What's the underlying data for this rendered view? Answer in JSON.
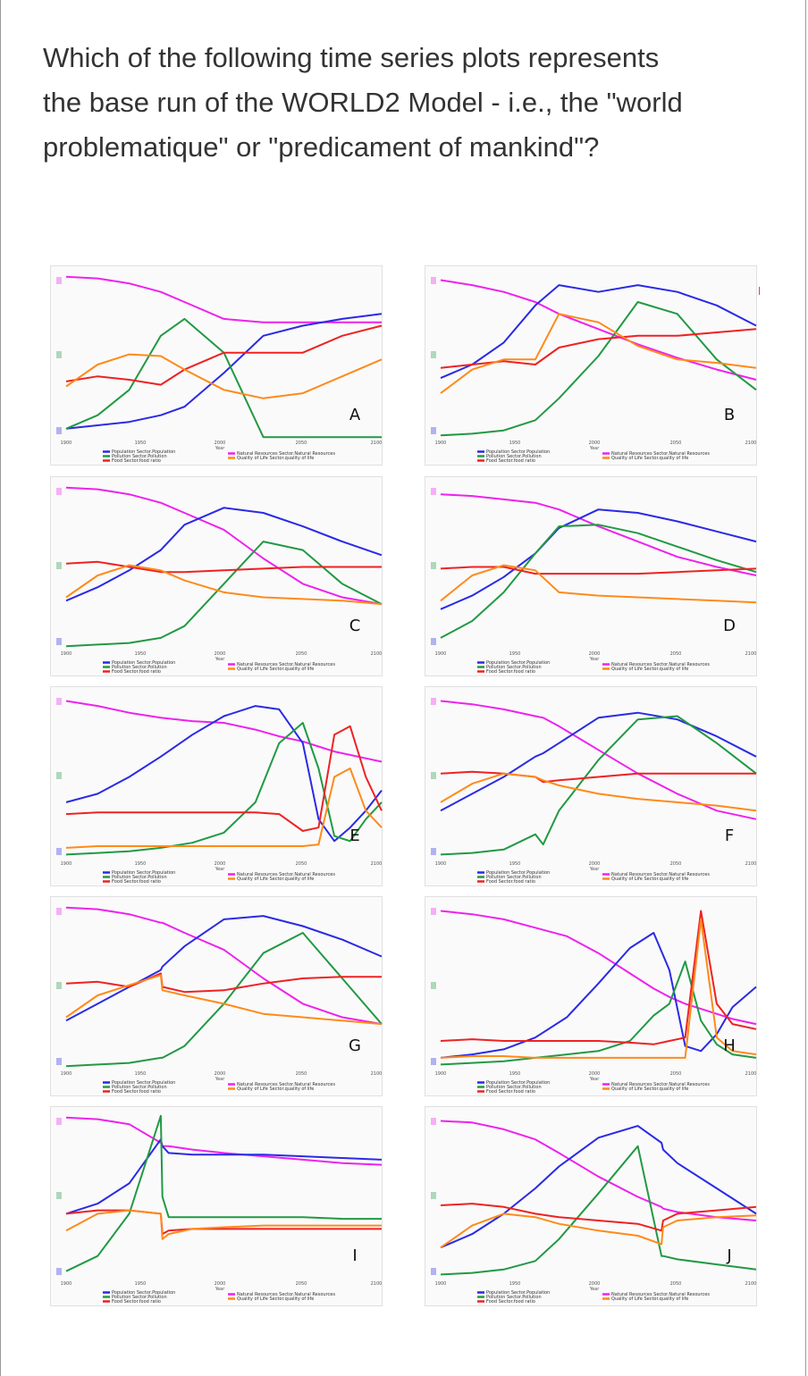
{
  "question": {
    "lines": [
      "Which of the following time series plots represents",
      "the base run of the WORLD2 Model - i.e., the \"world",
      "problematique\" or \"predicament of mankind\"?"
    ]
  },
  "colors": {
    "Natural Resources": "#ee22ee",
    "Population": "#2a2ae6",
    "Pollution": "#229944",
    "Food Ratio": "#ee2222",
    "Quality of Life": "#ff8a1a"
  },
  "legend": {
    "left": [
      "Population Sector.Population",
      "Pollution Sector.Pollution",
      "Food Sector.food ratio"
    ],
    "right": [
      "Natural Resources Sector.Natural Resources",
      "Quality of Life Sector.quality of life"
    ],
    "left_colors": [
      "#2a2ae6",
      "#229944",
      "#ee2222"
    ],
    "right_colors": [
      "#ee22ee",
      "#ff8a1a"
    ]
  },
  "chart_data": [
    {
      "type": "line",
      "label": "A",
      "x": [
        1900,
        1920,
        1940,
        1960,
        1975,
        2000,
        2025,
        2050,
        2075,
        2100
      ],
      "ylim": [
        0,
        1
      ],
      "xlabel": "Year",
      "x_ticks": [
        "1900",
        "1950",
        "2000",
        "2050",
        "2100"
      ],
      "series": [
        {
          "key": "Natural Resources",
          "values": [
            0.97,
            0.96,
            0.93,
            0.88,
            0.82,
            0.72,
            0.7,
            0.7,
            0.7,
            0.7
          ]
        },
        {
          "key": "Population",
          "values": [
            0.07,
            0.09,
            0.11,
            0.15,
            0.2,
            0.4,
            0.62,
            0.68,
            0.72,
            0.75
          ]
        },
        {
          "key": "Pollution",
          "values": [
            0.07,
            0.15,
            0.3,
            0.62,
            0.72,
            0.52,
            0.02,
            0.02,
            0.02,
            0.02
          ]
        },
        {
          "key": "Food Ratio",
          "values": [
            0.35,
            0.38,
            0.36,
            0.33,
            0.42,
            0.52,
            0.52,
            0.52,
            0.62,
            0.68
          ]
        },
        {
          "key": "Quality of Life",
          "values": [
            0.32,
            0.45,
            0.51,
            0.5,
            0.42,
            0.3,
            0.25,
            0.28,
            0.38,
            0.48
          ]
        }
      ]
    },
    {
      "type": "line",
      "label": "B",
      "x": [
        1900,
        1920,
        1940,
        1960,
        1975,
        2000,
        2025,
        2050,
        2075,
        2100
      ],
      "ylim": [
        0,
        1
      ],
      "xlabel": "Year",
      "x_ticks": [
        "1900",
        "1950",
        "2000",
        "2050",
        "2100"
      ],
      "series": [
        {
          "key": "Natural Resources",
          "values": [
            0.95,
            0.92,
            0.88,
            0.82,
            0.75,
            0.66,
            0.57,
            0.49,
            0.42,
            0.36
          ]
        },
        {
          "key": "Population",
          "values": [
            0.37,
            0.45,
            0.58,
            0.8,
            0.92,
            0.88,
            0.92,
            0.88,
            0.8,
            0.68
          ]
        },
        {
          "key": "Pollution",
          "values": [
            0.03,
            0.04,
            0.06,
            0.12,
            0.25,
            0.5,
            0.82,
            0.75,
            0.48,
            0.3
          ]
        },
        {
          "key": "Food Ratio",
          "values": [
            0.43,
            0.45,
            0.47,
            0.45,
            0.55,
            0.6,
            0.62,
            0.62,
            0.64,
            0.66
          ]
        },
        {
          "key": "Quality of Life",
          "values": [
            0.28,
            0.42,
            0.48,
            0.48,
            0.75,
            0.7,
            0.56,
            0.48,
            0.46,
            0.43
          ]
        }
      ]
    },
    {
      "type": "line",
      "label": "C",
      "x": [
        1900,
        1920,
        1940,
        1960,
        1975,
        2000,
        2025,
        2050,
        2075,
        2100
      ],
      "ylim": [
        0,
        1
      ],
      "xlabel": "Year",
      "x_ticks": [
        "1900",
        "1950",
        "2000",
        "2050",
        "2100"
      ],
      "series": [
        {
          "key": "Natural Resources",
          "values": [
            0.97,
            0.96,
            0.93,
            0.88,
            0.82,
            0.72,
            0.55,
            0.4,
            0.32,
            0.28
          ]
        },
        {
          "key": "Population",
          "values": [
            0.3,
            0.38,
            0.48,
            0.6,
            0.75,
            0.85,
            0.82,
            0.74,
            0.65,
            0.57
          ]
        },
        {
          "key": "Pollution",
          "values": [
            0.03,
            0.04,
            0.05,
            0.08,
            0.15,
            0.4,
            0.65,
            0.6,
            0.4,
            0.28
          ]
        },
        {
          "key": "Food Ratio",
          "values": [
            0.52,
            0.53,
            0.5,
            0.47,
            0.47,
            0.48,
            0.49,
            0.5,
            0.5,
            0.5
          ]
        },
        {
          "key": "Quality of Life",
          "values": [
            0.32,
            0.45,
            0.51,
            0.48,
            0.42,
            0.35,
            0.32,
            0.31,
            0.3,
            0.28
          ]
        }
      ]
    },
    {
      "type": "line",
      "label": "D",
      "x": [
        1900,
        1920,
        1940,
        1960,
        1975,
        2000,
        2025,
        2050,
        2075,
        2100
      ],
      "ylim": [
        0,
        1
      ],
      "xlabel": "Year",
      "x_ticks": [
        "1900",
        "1950",
        "2000",
        "2050",
        "2100"
      ],
      "series": [
        {
          "key": "Natural Resources",
          "values": [
            0.93,
            0.92,
            0.9,
            0.88,
            0.84,
            0.74,
            0.65,
            0.56,
            0.5,
            0.45
          ]
        },
        {
          "key": "Population",
          "values": [
            0.25,
            0.33,
            0.44,
            0.58,
            0.73,
            0.84,
            0.82,
            0.77,
            0.71,
            0.65
          ]
        },
        {
          "key": "Pollution",
          "values": [
            0.08,
            0.18,
            0.35,
            0.58,
            0.74,
            0.75,
            0.7,
            0.62,
            0.54,
            0.47
          ]
        },
        {
          "key": "Food Ratio",
          "values": [
            0.49,
            0.5,
            0.5,
            0.46,
            0.46,
            0.46,
            0.46,
            0.47,
            0.48,
            0.49
          ]
        },
        {
          "key": "Quality of Life",
          "values": [
            0.3,
            0.45,
            0.51,
            0.48,
            0.35,
            0.33,
            0.32,
            0.31,
            0.3,
            0.29
          ]
        }
      ]
    },
    {
      "type": "line",
      "label": "E",
      "x": [
        1900,
        1920,
        1940,
        1960,
        1980,
        2000,
        2020,
        2035,
        2050,
        2060,
        2070,
        2080,
        2090,
        2100
      ],
      "ylim": [
        0,
        1
      ],
      "xlabel": "Year",
      "x_ticks": [
        "1900",
        "1950",
        "2000",
        "2050",
        "2100"
      ],
      "series": [
        {
          "key": "Natural Resources",
          "values": [
            0.95,
            0.92,
            0.88,
            0.85,
            0.83,
            0.82,
            0.78,
            0.74,
            0.71,
            0.68,
            0.65,
            0.63,
            0.61,
            0.59
          ]
        },
        {
          "key": "Population",
          "values": [
            0.35,
            0.4,
            0.5,
            0.62,
            0.75,
            0.86,
            0.92,
            0.9,
            0.7,
            0.25,
            0.12,
            0.2,
            0.3,
            0.42
          ]
        },
        {
          "key": "Pollution",
          "values": [
            0.04,
            0.05,
            0.06,
            0.08,
            0.11,
            0.17,
            0.35,
            0.7,
            0.82,
            0.55,
            0.15,
            0.12,
            0.25,
            0.35
          ]
        },
        {
          "key": "Food Ratio",
          "values": [
            0.28,
            0.29,
            0.29,
            0.29,
            0.29,
            0.29,
            0.29,
            0.28,
            0.18,
            0.2,
            0.75,
            0.8,
            0.5,
            0.3
          ]
        },
        {
          "key": "Quality of Life",
          "values": [
            0.08,
            0.09,
            0.09,
            0.09,
            0.09,
            0.09,
            0.09,
            0.09,
            0.09,
            0.1,
            0.5,
            0.55,
            0.3,
            0.2
          ]
        }
      ]
    },
    {
      "type": "line",
      "label": "F",
      "x": [
        1900,
        1920,
        1940,
        1960,
        1965,
        1975,
        2000,
        2025,
        2050,
        2075,
        2100
      ],
      "ylim": [
        0,
        1
      ],
      "xlabel": "Year",
      "x_ticks": [
        "1900",
        "1950",
        "2000",
        "2050",
        "2100"
      ],
      "series": [
        {
          "key": "Natural Resources",
          "values": [
            0.95,
            0.93,
            0.9,
            0.86,
            0.85,
            0.8,
            0.66,
            0.52,
            0.4,
            0.3,
            0.25
          ]
        },
        {
          "key": "Population",
          "values": [
            0.3,
            0.4,
            0.5,
            0.62,
            0.64,
            0.7,
            0.85,
            0.88,
            0.84,
            0.74,
            0.62
          ]
        },
        {
          "key": "Pollution",
          "values": [
            0.04,
            0.05,
            0.07,
            0.16,
            0.1,
            0.3,
            0.6,
            0.84,
            0.86,
            0.7,
            0.52
          ]
        },
        {
          "key": "Food Ratio",
          "values": [
            0.52,
            0.53,
            0.52,
            0.5,
            0.47,
            0.48,
            0.5,
            0.52,
            0.52,
            0.52,
            0.52
          ]
        },
        {
          "key": "Quality of Life",
          "values": [
            0.35,
            0.46,
            0.52,
            0.5,
            0.48,
            0.45,
            0.4,
            0.37,
            0.35,
            0.33,
            0.3
          ]
        }
      ]
    },
    {
      "type": "line",
      "label": "G",
      "x": [
        1900,
        1920,
        1940,
        1960,
        1961,
        1975,
        2000,
        2025,
        2050,
        2075,
        2100
      ],
      "ylim": [
        0,
        1
      ],
      "xlabel": "Year",
      "x_ticks": [
        "1900",
        "1950",
        "2000",
        "2050",
        "2100"
      ],
      "series": [
        {
          "key": "Natural Resources",
          "values": [
            0.97,
            0.96,
            0.93,
            0.88,
            0.88,
            0.82,
            0.72,
            0.55,
            0.4,
            0.32,
            0.28
          ]
        },
        {
          "key": "Population",
          "values": [
            0.3,
            0.4,
            0.5,
            0.6,
            0.62,
            0.74,
            0.9,
            0.92,
            0.86,
            0.78,
            0.68
          ]
        },
        {
          "key": "Pollution",
          "values": [
            0.03,
            0.04,
            0.05,
            0.08,
            0.08,
            0.15,
            0.4,
            0.7,
            0.82,
            0.55,
            0.28
          ]
        },
        {
          "key": "Food Ratio",
          "values": [
            0.52,
            0.53,
            0.5,
            0.58,
            0.5,
            0.47,
            0.48,
            0.52,
            0.55,
            0.56,
            0.56
          ]
        },
        {
          "key": "Quality of Life",
          "values": [
            0.32,
            0.45,
            0.51,
            0.57,
            0.48,
            0.45,
            0.4,
            0.34,
            0.32,
            0.3,
            0.28
          ]
        }
      ]
    },
    {
      "type": "line",
      "label": "H",
      "x": [
        1900,
        1920,
        1940,
        1960,
        1980,
        2000,
        2020,
        2035,
        2045,
        2055,
        2065,
        2075,
        2085,
        2100
      ],
      "ylim": [
        0,
        1
      ],
      "xlabel": "Year",
      "x_ticks": [
        "1900",
        "1950",
        "2000",
        "2050",
        "2100"
      ],
      "series": [
        {
          "key": "Natural Resources",
          "values": [
            0.95,
            0.93,
            0.9,
            0.85,
            0.8,
            0.7,
            0.58,
            0.49,
            0.44,
            0.4,
            0.37,
            0.34,
            0.31,
            0.28
          ]
        },
        {
          "key": "Population",
          "values": [
            0.08,
            0.1,
            0.13,
            0.2,
            0.32,
            0.52,
            0.73,
            0.82,
            0.6,
            0.15,
            0.12,
            0.22,
            0.38,
            0.5
          ]
        },
        {
          "key": "Pollution",
          "values": [
            0.04,
            0.05,
            0.06,
            0.08,
            0.1,
            0.12,
            0.18,
            0.33,
            0.4,
            0.65,
            0.3,
            0.16,
            0.1,
            0.08
          ]
        },
        {
          "key": "Food Ratio",
          "values": [
            0.18,
            0.19,
            0.18,
            0.18,
            0.18,
            0.18,
            0.17,
            0.16,
            0.18,
            0.2,
            0.95,
            0.4,
            0.28,
            0.25
          ]
        },
        {
          "key": "Quality of Life",
          "values": [
            0.08,
            0.09,
            0.09,
            0.08,
            0.08,
            0.08,
            0.08,
            0.08,
            0.08,
            0.08,
            0.9,
            0.2,
            0.12,
            0.1
          ]
        }
      ]
    },
    {
      "type": "line",
      "label": "I",
      "x": [
        1900,
        1920,
        1940,
        1960,
        1961,
        1965,
        1980,
        2000,
        2025,
        2050,
        2075,
        2100
      ],
      "ylim": [
        0,
        1
      ],
      "xlabel": "Year",
      "x_ticks": [
        "1900",
        "1950",
        "2000",
        "2050",
        "2100"
      ],
      "series": [
        {
          "key": "Natural Resources",
          "values": [
            0.97,
            0.96,
            0.93,
            0.82,
            0.8,
            0.8,
            0.78,
            0.76,
            0.74,
            0.72,
            0.7,
            0.69
          ]
        },
        {
          "key": "Population",
          "values": [
            0.4,
            0.46,
            0.58,
            0.84,
            0.8,
            0.76,
            0.75,
            0.75,
            0.75,
            0.74,
            0.73,
            0.72
          ]
        },
        {
          "key": "Pollution",
          "values": [
            0.06,
            0.15,
            0.4,
            0.98,
            0.5,
            0.38,
            0.38,
            0.38,
            0.38,
            0.38,
            0.37,
            0.37
          ]
        },
        {
          "key": "Food Ratio",
          "values": [
            0.4,
            0.42,
            0.42,
            0.4,
            0.28,
            0.3,
            0.31,
            0.31,
            0.31,
            0.31,
            0.31,
            0.31
          ]
        },
        {
          "key": "Quality of Life",
          "values": [
            0.3,
            0.4,
            0.42,
            0.4,
            0.25,
            0.28,
            0.31,
            0.32,
            0.33,
            0.33,
            0.33,
            0.33
          ]
        }
      ]
    },
    {
      "type": "line",
      "label": "J",
      "x": [
        1900,
        1920,
        1940,
        1960,
        1975,
        2000,
        2025,
        2040,
        2041,
        2050,
        2075,
        2100
      ],
      "ylim": [
        0,
        1
      ],
      "xlabel": "Year",
      "x_ticks": [
        "1900",
        "1950",
        "2000",
        "2050",
        "2100"
      ],
      "series": [
        {
          "key": "Natural Resources",
          "values": [
            0.95,
            0.94,
            0.9,
            0.84,
            0.76,
            0.62,
            0.5,
            0.44,
            0.43,
            0.41,
            0.38,
            0.36
          ]
        },
        {
          "key": "Population",
          "values": [
            0.2,
            0.28,
            0.4,
            0.55,
            0.68,
            0.85,
            0.92,
            0.82,
            0.78,
            0.7,
            0.55,
            0.4
          ]
        },
        {
          "key": "Pollution",
          "values": [
            0.04,
            0.05,
            0.07,
            0.12,
            0.25,
            0.52,
            0.8,
            0.15,
            0.15,
            0.13,
            0.1,
            0.07
          ]
        },
        {
          "key": "Food Ratio",
          "values": [
            0.45,
            0.46,
            0.44,
            0.4,
            0.38,
            0.36,
            0.34,
            0.3,
            0.36,
            0.4,
            0.42,
            0.44
          ]
        },
        {
          "key": "Quality of Life",
          "values": [
            0.2,
            0.33,
            0.4,
            0.38,
            0.34,
            0.3,
            0.27,
            0.22,
            0.32,
            0.36,
            0.38,
            0.39
          ]
        }
      ]
    }
  ]
}
